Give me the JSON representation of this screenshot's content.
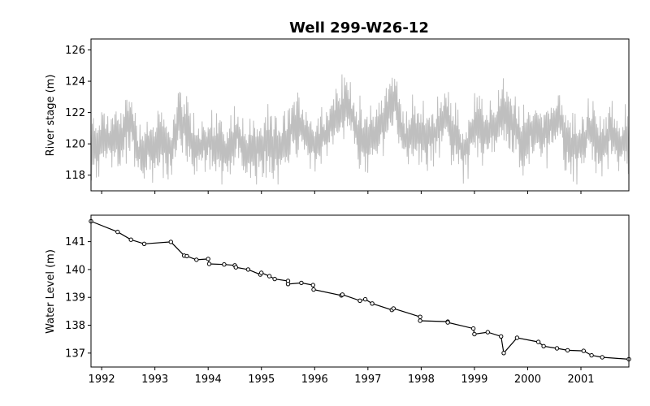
{
  "title": "Well 299-W26-12",
  "chart_data": [
    {
      "type": "line",
      "ylabel": "River stage (m)",
      "xlabel": "",
      "xlim": [
        1991.8,
        2001.9
      ],
      "ylim": [
        117,
        126.7
      ],
      "yticks": [
        118,
        120,
        122,
        124,
        126
      ],
      "grid": false,
      "series": [
        {
          "color": "#bfbfbf",
          "x": [
            1991.8,
            1992.0,
            1992.2,
            1992.4,
            1992.55,
            1992.7,
            1992.9,
            1993.1,
            1993.3,
            1993.45,
            1993.6,
            1993.8,
            1994.0,
            1994.2,
            1994.4,
            1994.55,
            1994.7,
            1994.9,
            1995.1,
            1995.3,
            1995.5,
            1995.6,
            1995.8,
            1996.0,
            1996.2,
            1996.4,
            1996.55,
            1996.7,
            1996.9,
            1997.1,
            1997.3,
            1997.45,
            1997.55,
            1997.7,
            1997.9,
            1998.1,
            1998.3,
            1998.45,
            1998.6,
            1998.8,
            1999.0,
            1999.2,
            1999.4,
            1999.5,
            1999.7,
            1999.9,
            2000.1,
            2000.3,
            2000.45,
            2000.6,
            2000.8,
            2001.0,
            2001.2,
            2001.4,
            2001.55,
            2001.7,
            2001.9
          ],
          "y": [
            119.6,
            120.4,
            120.1,
            120.6,
            121.6,
            119.4,
            119.9,
            120.0,
            119.7,
            121.4,
            120.8,
            119.6,
            120.1,
            119.9,
            119.6,
            120.9,
            119.4,
            119.8,
            120.0,
            119.7,
            120.1,
            121.6,
            120.9,
            119.8,
            120.6,
            121.6,
            122.5,
            121.9,
            120.1,
            120.7,
            121.5,
            122.9,
            122.2,
            120.1,
            120.9,
            120.4,
            120.8,
            121.9,
            120.6,
            119.5,
            120.9,
            120.7,
            121.0,
            122.2,
            121.4,
            120.1,
            121.0,
            120.4,
            121.4,
            121.6,
            119.6,
            120.0,
            121.0,
            119.6,
            120.8,
            119.7,
            120.3
          ]
        }
      ]
    },
    {
      "type": "line",
      "ylabel": "Water Level (m)",
      "xlabel": "",
      "xlim": [
        1991.8,
        2001.9
      ],
      "ylim": [
        136.5,
        141.95
      ],
      "yticks": [
        137,
        138,
        139,
        140,
        141
      ],
      "xticks": [
        1992,
        1993,
        1994,
        1995,
        1996,
        1997,
        1998,
        1999,
        2000,
        2001
      ],
      "xticklabels": [
        "1992",
        "1993",
        "1994",
        "1995",
        "1996",
        "1997",
        "1998",
        "1999",
        "2000",
        "2001"
      ],
      "grid": false,
      "series": [
        {
          "color": "#000000",
          "markers": "circle",
          "x": [
            1991.8,
            1992.3,
            1992.55,
            1992.8,
            1993.3,
            1993.55,
            1993.6,
            1993.78,
            1994.0,
            1994.02,
            1994.3,
            1994.5,
            1994.52,
            1994.75,
            1994.98,
            1995.0,
            1995.15,
            1995.25,
            1995.5,
            1995.5,
            1995.75,
            1995.97,
            1995.98,
            1996.5,
            1996.52,
            1996.85,
            1996.95,
            1997.08,
            1997.45,
            1997.48,
            1997.98,
            1997.98,
            1998.5,
            1998.5,
            1998.98,
            1999.0,
            1999.25,
            1999.5,
            1999.55,
            1999.8,
            2000.2,
            2000.3,
            2000.55,
            2000.75,
            2001.05,
            2001.2,
            2001.4,
            2001.9
          ],
          "y": [
            141.73,
            141.35,
            141.07,
            140.92,
            140.99,
            140.5,
            140.48,
            140.35,
            140.38,
            140.2,
            140.18,
            140.15,
            140.08,
            140.0,
            139.82,
            139.88,
            139.76,
            139.66,
            139.59,
            139.48,
            139.52,
            139.44,
            139.28,
            139.07,
            139.1,
            138.88,
            138.93,
            138.78,
            138.55,
            138.6,
            138.3,
            138.16,
            138.13,
            138.1,
            137.88,
            137.68,
            137.75,
            137.6,
            137.0,
            137.55,
            137.4,
            137.25,
            137.17,
            137.1,
            137.08,
            136.92,
            136.85,
            136.78
          ]
        }
      ]
    }
  ]
}
